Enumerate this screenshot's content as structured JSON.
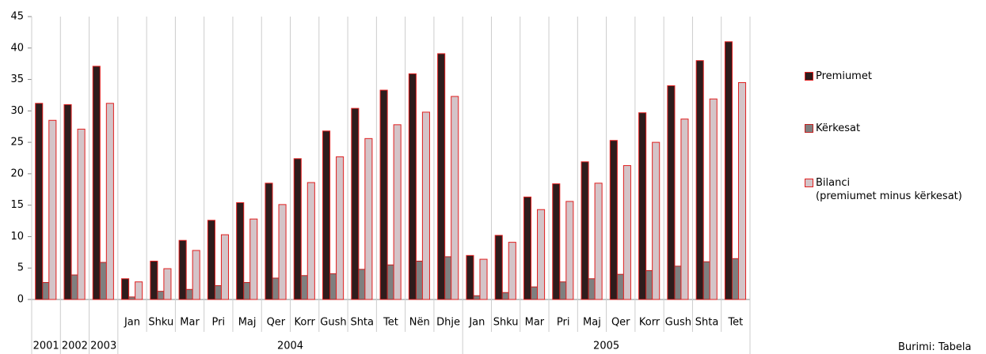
{
  "chart_data": {
    "type": "bar",
    "categories": [
      null,
      null,
      null,
      "Jan",
      "Shku",
      "Mar",
      "Pri",
      "Maj",
      "Qer",
      "Korr",
      "Gush",
      "Shta",
      "Tet",
      "Nën",
      "Dhje",
      "Jan",
      "Shku",
      "Mar",
      "Pri",
      "Maj",
      "Qer",
      "Korr",
      "Gush",
      "Shta",
      "Tet"
    ],
    "category_groups": [
      "2001",
      "2002",
      "2003",
      "2004",
      "2004",
      "2004",
      "2004",
      "2004",
      "2004",
      "2004",
      "2004",
      "2004",
      "2004",
      "2004",
      "2004",
      "2005",
      "2005",
      "2005",
      "2005",
      "2005",
      "2005",
      "2005",
      "2005",
      "2005",
      "2005"
    ],
    "series": [
      {
        "name": "Premiumet",
        "color": "#2e1c1c",
        "edge_color": "#e02020",
        "values": [
          31.2,
          31,
          37.1,
          3.3,
          6.1,
          9.4,
          12.6,
          15.4,
          18.5,
          22.4,
          26.8,
          30.4,
          33.3,
          35.9,
          39.1,
          7,
          10.2,
          16.3,
          18.4,
          21.9,
          25.3,
          29.7,
          34,
          38,
          41
        ]
      },
      {
        "name": "Kërkesat",
        "color": "#7f7f7f",
        "edge_color": "#c02020",
        "values": [
          2.7,
          3.9,
          5.9,
          0.4,
          1.3,
          1.6,
          2.2,
          2.7,
          3.4,
          3.8,
          4.1,
          4.8,
          5.5,
          6.1,
          6.8,
          0.6,
          1.1,
          2.0,
          2.8,
          3.3,
          4.0,
          4.6,
          5.3,
          6.0,
          6.5
        ]
      },
      {
        "name": "Bilanci\n(premiumet minus kërkesat)",
        "color": "#d4c4c8",
        "edge_color": "#e02020",
        "values": [
          28.5,
          27.1,
          31.2,
          2.8,
          4.9,
          7.8,
          10.3,
          12.8,
          15.1,
          18.6,
          22.7,
          25.6,
          27.8,
          29.8,
          32.3,
          6.4,
          9.1,
          14.3,
          15.6,
          18.5,
          21.3,
          25.0,
          28.7,
          31.9,
          34.5
        ]
      }
    ],
    "ylim": [
      0,
      45
    ],
    "yticks": [
      0,
      5,
      10,
      15,
      20,
      25,
      30,
      35,
      40,
      45
    ],
    "legend": "right",
    "source": "Burimi: Tabela"
  }
}
